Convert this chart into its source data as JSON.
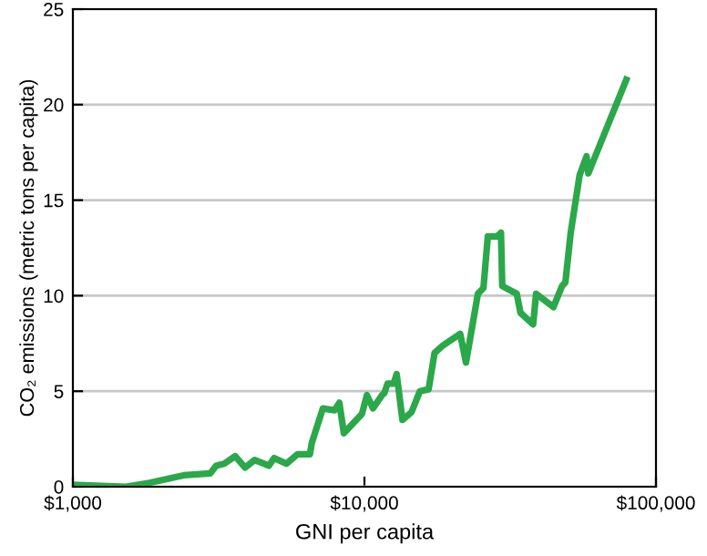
{
  "chart_data": {
    "type": "line",
    "xlabel": "GNI per capita",
    "ylabel": "CO₂ emissions (metric tons per capita)",
    "log": "x",
    "xlim": [
      1000,
      100000
    ],
    "xticks": [
      {
        "value": 1000,
        "label": "$1,000"
      },
      {
        "value": 10000,
        "label": "$10,000"
      },
      {
        "value": 100000,
        "label": "$100,000"
      }
    ],
    "ylim": [
      0,
      25
    ],
    "yticks": [
      0,
      5,
      10,
      15,
      20,
      25
    ],
    "grid": "y",
    "marker": "none",
    "line_style": "solid",
    "series": [
      {
        "color": "#2ba84a",
        "x": [
          1000,
          1520,
          1830,
          2400,
          2960,
          3100,
          3300,
          3600,
          3900,
          4200,
          4700,
          4900,
          5400,
          5900,
          6500,
          6600,
          7200,
          7900,
          8200,
          8500,
          9800,
          10200,
          10700,
          11500,
          11700,
          12000,
          12600,
          12900,
          13500,
          14500,
          15500,
          16600,
          17400,
          18600,
          21300,
          22300,
          24500,
          25600,
          26500,
          28500,
          29400,
          29700,
          33300,
          34300,
          37900,
          38800,
          44500,
          47600,
          48900,
          51000,
          54700,
          57800,
          58600,
          79100
        ],
        "values": [
          0.1,
          0.0,
          0.2,
          0.6,
          0.7,
          1.1,
          1.2,
          1.6,
          1.0,
          1.4,
          1.1,
          1.5,
          1.2,
          1.7,
          1.7,
          2.3,
          4.1,
          4.0,
          4.4,
          2.8,
          3.8,
          4.8,
          4.1,
          4.8,
          4.9,
          5.4,
          5.4,
          5.9,
          3.5,
          3.9,
          5.0,
          5.1,
          7.0,
          7.4,
          8.0,
          6.5,
          10.1,
          10.4,
          13.1,
          13.1,
          13.3,
          10.5,
          10.1,
          9.1,
          8.5,
          10.1,
          9.4,
          10.5,
          10.7,
          13.3,
          16.3,
          17.3,
          16.4,
          21.3
        ]
      }
    ]
  }
}
